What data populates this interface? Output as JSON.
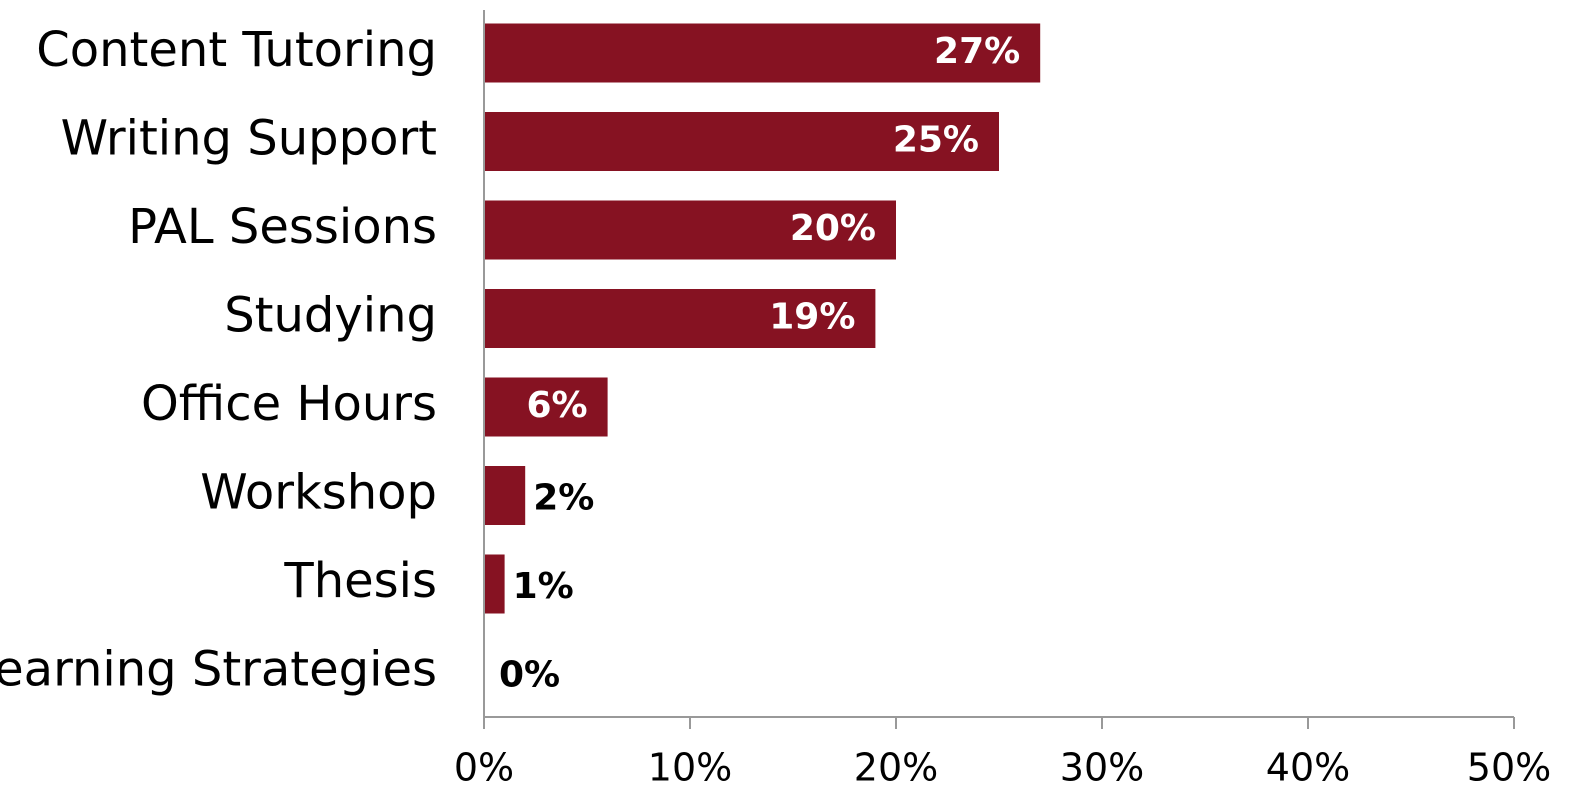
{
  "chart_data": {
    "type": "bar",
    "orientation": "horizontal",
    "categories": [
      "Content Tutoring",
      "Writing Support",
      "PAL Sessions",
      "Studying",
      "Office Hours",
      "Workshop",
      "Thesis",
      "Learning Strategies"
    ],
    "values": [
      27,
      25,
      20,
      19,
      6,
      2,
      1,
      0
    ],
    "data_labels": [
      "27%",
      "25%",
      "20%",
      "19%",
      "6%",
      "2%",
      "1%",
      "0%"
    ],
    "xlim": [
      0,
      50
    ],
    "xticks": [
      0,
      10,
      20,
      30,
      40,
      50
    ],
    "xtick_labels": [
      "0%",
      "10%",
      "20%",
      "30%",
      "40%",
      "50%"
    ],
    "title": "",
    "xlabel": "",
    "ylabel": "",
    "grid": false,
    "legend": "none"
  },
  "colors": {
    "bar": "#861222",
    "axis": "#999999",
    "label_inside": "#ffffff",
    "label_outside": "#000000"
  }
}
